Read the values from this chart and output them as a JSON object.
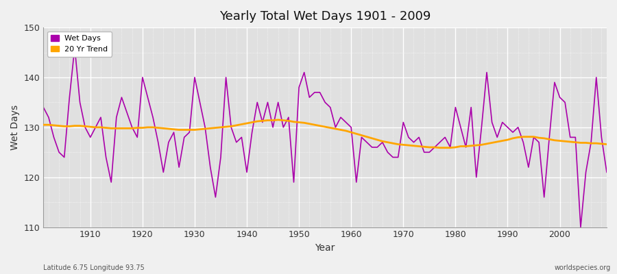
{
  "title": "Yearly Total Wet Days 1901 - 2009",
  "xlabel": "Year",
  "ylabel": "Wet Days",
  "subtitle": "Latitude 6.75 Longitude 93.75",
  "watermark": "worldspecies.org",
  "ylim": [
    110,
    150
  ],
  "xlim": [
    1901,
    2009
  ],
  "fig_bg_color": "#f0f0f0",
  "plot_bg_color": "#e0e0e0",
  "wet_days_color": "#aa00aa",
  "trend_color": "#FFA500",
  "years": [
    1901,
    1902,
    1903,
    1904,
    1905,
    1906,
    1907,
    1908,
    1909,
    1910,
    1911,
    1912,
    1913,
    1914,
    1915,
    1916,
    1917,
    1918,
    1919,
    1920,
    1921,
    1922,
    1923,
    1924,
    1925,
    1926,
    1927,
    1928,
    1929,
    1930,
    1931,
    1932,
    1933,
    1934,
    1935,
    1936,
    1937,
    1938,
    1939,
    1940,
    1941,
    1942,
    1943,
    1944,
    1945,
    1946,
    1947,
    1948,
    1949,
    1950,
    1951,
    1952,
    1953,
    1954,
    1955,
    1956,
    1957,
    1958,
    1959,
    1960,
    1961,
    1962,
    1963,
    1964,
    1965,
    1966,
    1967,
    1968,
    1969,
    1970,
    1971,
    1972,
    1973,
    1974,
    1975,
    1976,
    1977,
    1978,
    1979,
    1980,
    1981,
    1982,
    1983,
    1984,
    1985,
    1986,
    1987,
    1988,
    1989,
    1990,
    1991,
    1992,
    1993,
    1994,
    1995,
    1996,
    1997,
    1998,
    1999,
    2000,
    2001,
    2002,
    2003,
    2004,
    2005,
    2006,
    2007,
    2008,
    2009
  ],
  "wet_days": [
    134,
    132,
    128,
    125,
    124,
    136,
    146,
    135,
    130,
    128,
    130,
    132,
    124,
    119,
    132,
    136,
    133,
    130,
    128,
    140,
    136,
    132,
    127,
    121,
    127,
    129,
    122,
    128,
    129,
    140,
    135,
    130,
    122,
    116,
    124,
    140,
    130,
    127,
    128,
    121,
    129,
    135,
    131,
    135,
    130,
    135,
    130,
    132,
    119,
    138,
    141,
    136,
    137,
    137,
    135,
    134,
    130,
    132,
    131,
    130,
    119,
    128,
    127,
    126,
    126,
    127,
    125,
    124,
    124,
    131,
    128,
    127,
    128,
    125,
    125,
    126,
    127,
    128,
    126,
    134,
    130,
    126,
    134,
    120,
    130,
    141,
    131,
    128,
    131,
    130,
    129,
    130,
    127,
    122,
    128,
    127,
    116,
    128,
    139,
    136,
    135,
    128,
    128,
    110,
    121,
    127,
    140,
    128,
    121
  ],
  "trend": [
    130.5,
    130.5,
    130.4,
    130.3,
    130.2,
    130.2,
    130.3,
    130.3,
    130.2,
    130.1,
    130.0,
    130.0,
    129.9,
    129.8,
    129.8,
    129.8,
    129.8,
    129.8,
    129.9,
    129.9,
    130.0,
    130.0,
    129.9,
    129.8,
    129.7,
    129.6,
    129.5,
    129.5,
    129.5,
    129.5,
    129.6,
    129.7,
    129.8,
    129.9,
    130.0,
    130.1,
    130.2,
    130.4,
    130.6,
    130.8,
    131.0,
    131.2,
    131.3,
    131.4,
    131.4,
    131.5,
    131.4,
    131.3,
    131.1,
    131.0,
    130.9,
    130.7,
    130.5,
    130.3,
    130.1,
    129.9,
    129.7,
    129.5,
    129.3,
    129.0,
    128.7,
    128.4,
    128.1,
    127.8,
    127.5,
    127.2,
    127.0,
    126.8,
    126.6,
    126.5,
    126.4,
    126.3,
    126.2,
    126.1,
    126.0,
    126.0,
    125.9,
    125.9,
    125.9,
    126.0,
    126.2,
    126.2,
    126.3,
    126.4,
    126.5,
    126.7,
    126.9,
    127.1,
    127.3,
    127.5,
    127.8,
    128.0,
    128.1,
    128.1,
    128.1,
    127.9,
    127.8,
    127.6,
    127.4,
    127.3,
    127.2,
    127.1,
    127.0,
    126.9,
    126.9,
    126.8,
    126.8,
    126.7,
    126.6
  ]
}
